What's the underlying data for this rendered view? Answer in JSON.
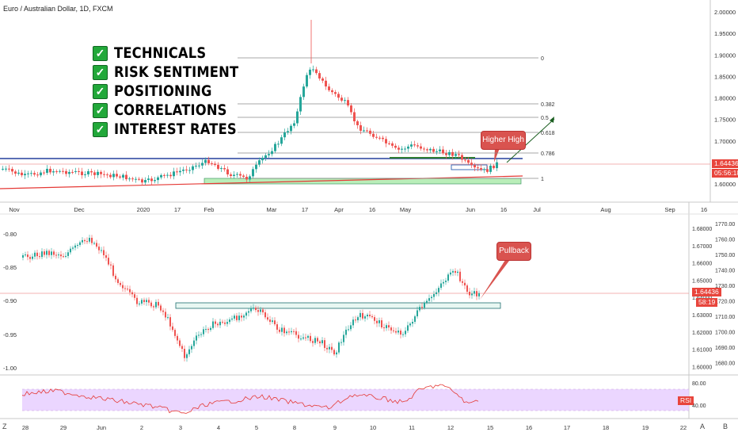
{
  "title": "Euro / Australian Dollar, 1D, FXCM",
  "checklist": [
    "TECHNICALS",
    "RISK SENTIMENT",
    "POSITIONING",
    "CORRELATIONS",
    "INTEREST RATES"
  ],
  "callouts": {
    "top": "Higher High",
    "bottom": "Pullback"
  },
  "price_tags": {
    "last_price": "1.64436",
    "countdown": "05:56:18",
    "last_price_2": "1.64436",
    "countdown_2": "58:19"
  },
  "rsi_label": "RSI",
  "corner_labels": {
    "left": "Z",
    "auto": "A",
    "log": "B"
  },
  "colors": {
    "up": "#26a69a",
    "down": "#ef5350",
    "fib": "#8a8a8a",
    "support_box": "#9be79b",
    "rsi_band": "#e6ccff",
    "accent": "#e8453c"
  },
  "chart_data": [
    {
      "type": "candlestick",
      "title": "Euro / Australian Dollar, 1D, FXCM",
      "ylim": [
        1.58,
        2.02
      ],
      "y_ticks": [
        "2.00000",
        "1.95000",
        "1.90000",
        "1.85000",
        "1.80000",
        "1.75000",
        "1.70000",
        "1.65000",
        "1.60000"
      ],
      "x_ticks": [
        "Nov",
        "Dec",
        "2020",
        "17",
        "Feb",
        "Mar",
        "17",
        "Apr",
        "16",
        "May",
        "Jun",
        "16",
        "Jul",
        "Aug",
        "Sep",
        "16"
      ],
      "fib_levels": [
        "0",
        "0.382",
        "0.5",
        "0.618",
        "0.786",
        "1"
      ]
    },
    {
      "type": "line",
      "y_ticks_left": [
        "-0.80",
        "-0.85",
        "-0.90",
        "-0.95",
        "-1.00"
      ],
      "y_ticks_right": [
        "1.68000",
        "1.67000",
        "1.66000",
        "1.65000",
        "1.64000",
        "1.63000",
        "1.62000",
        "1.61000",
        "1.60000"
      ],
      "y_ticks_right_outer": [
        "1770.00",
        "1760.00",
        "1750.00",
        "1740.00",
        "1730.00",
        "1720.00",
        "1710.00",
        "1700.00",
        "1690.00",
        "1680.00"
      ]
    },
    {
      "type": "line",
      "name": "RSI",
      "y_ticks": [
        "80.00",
        "40.00"
      ],
      "x_ticks": [
        "28",
        "29",
        "Jun",
        "2",
        "3",
        "4",
        "5",
        "8",
        "9",
        "10",
        "11",
        "12",
        "15",
        "16",
        "17",
        "18",
        "19",
        "22"
      ]
    }
  ]
}
